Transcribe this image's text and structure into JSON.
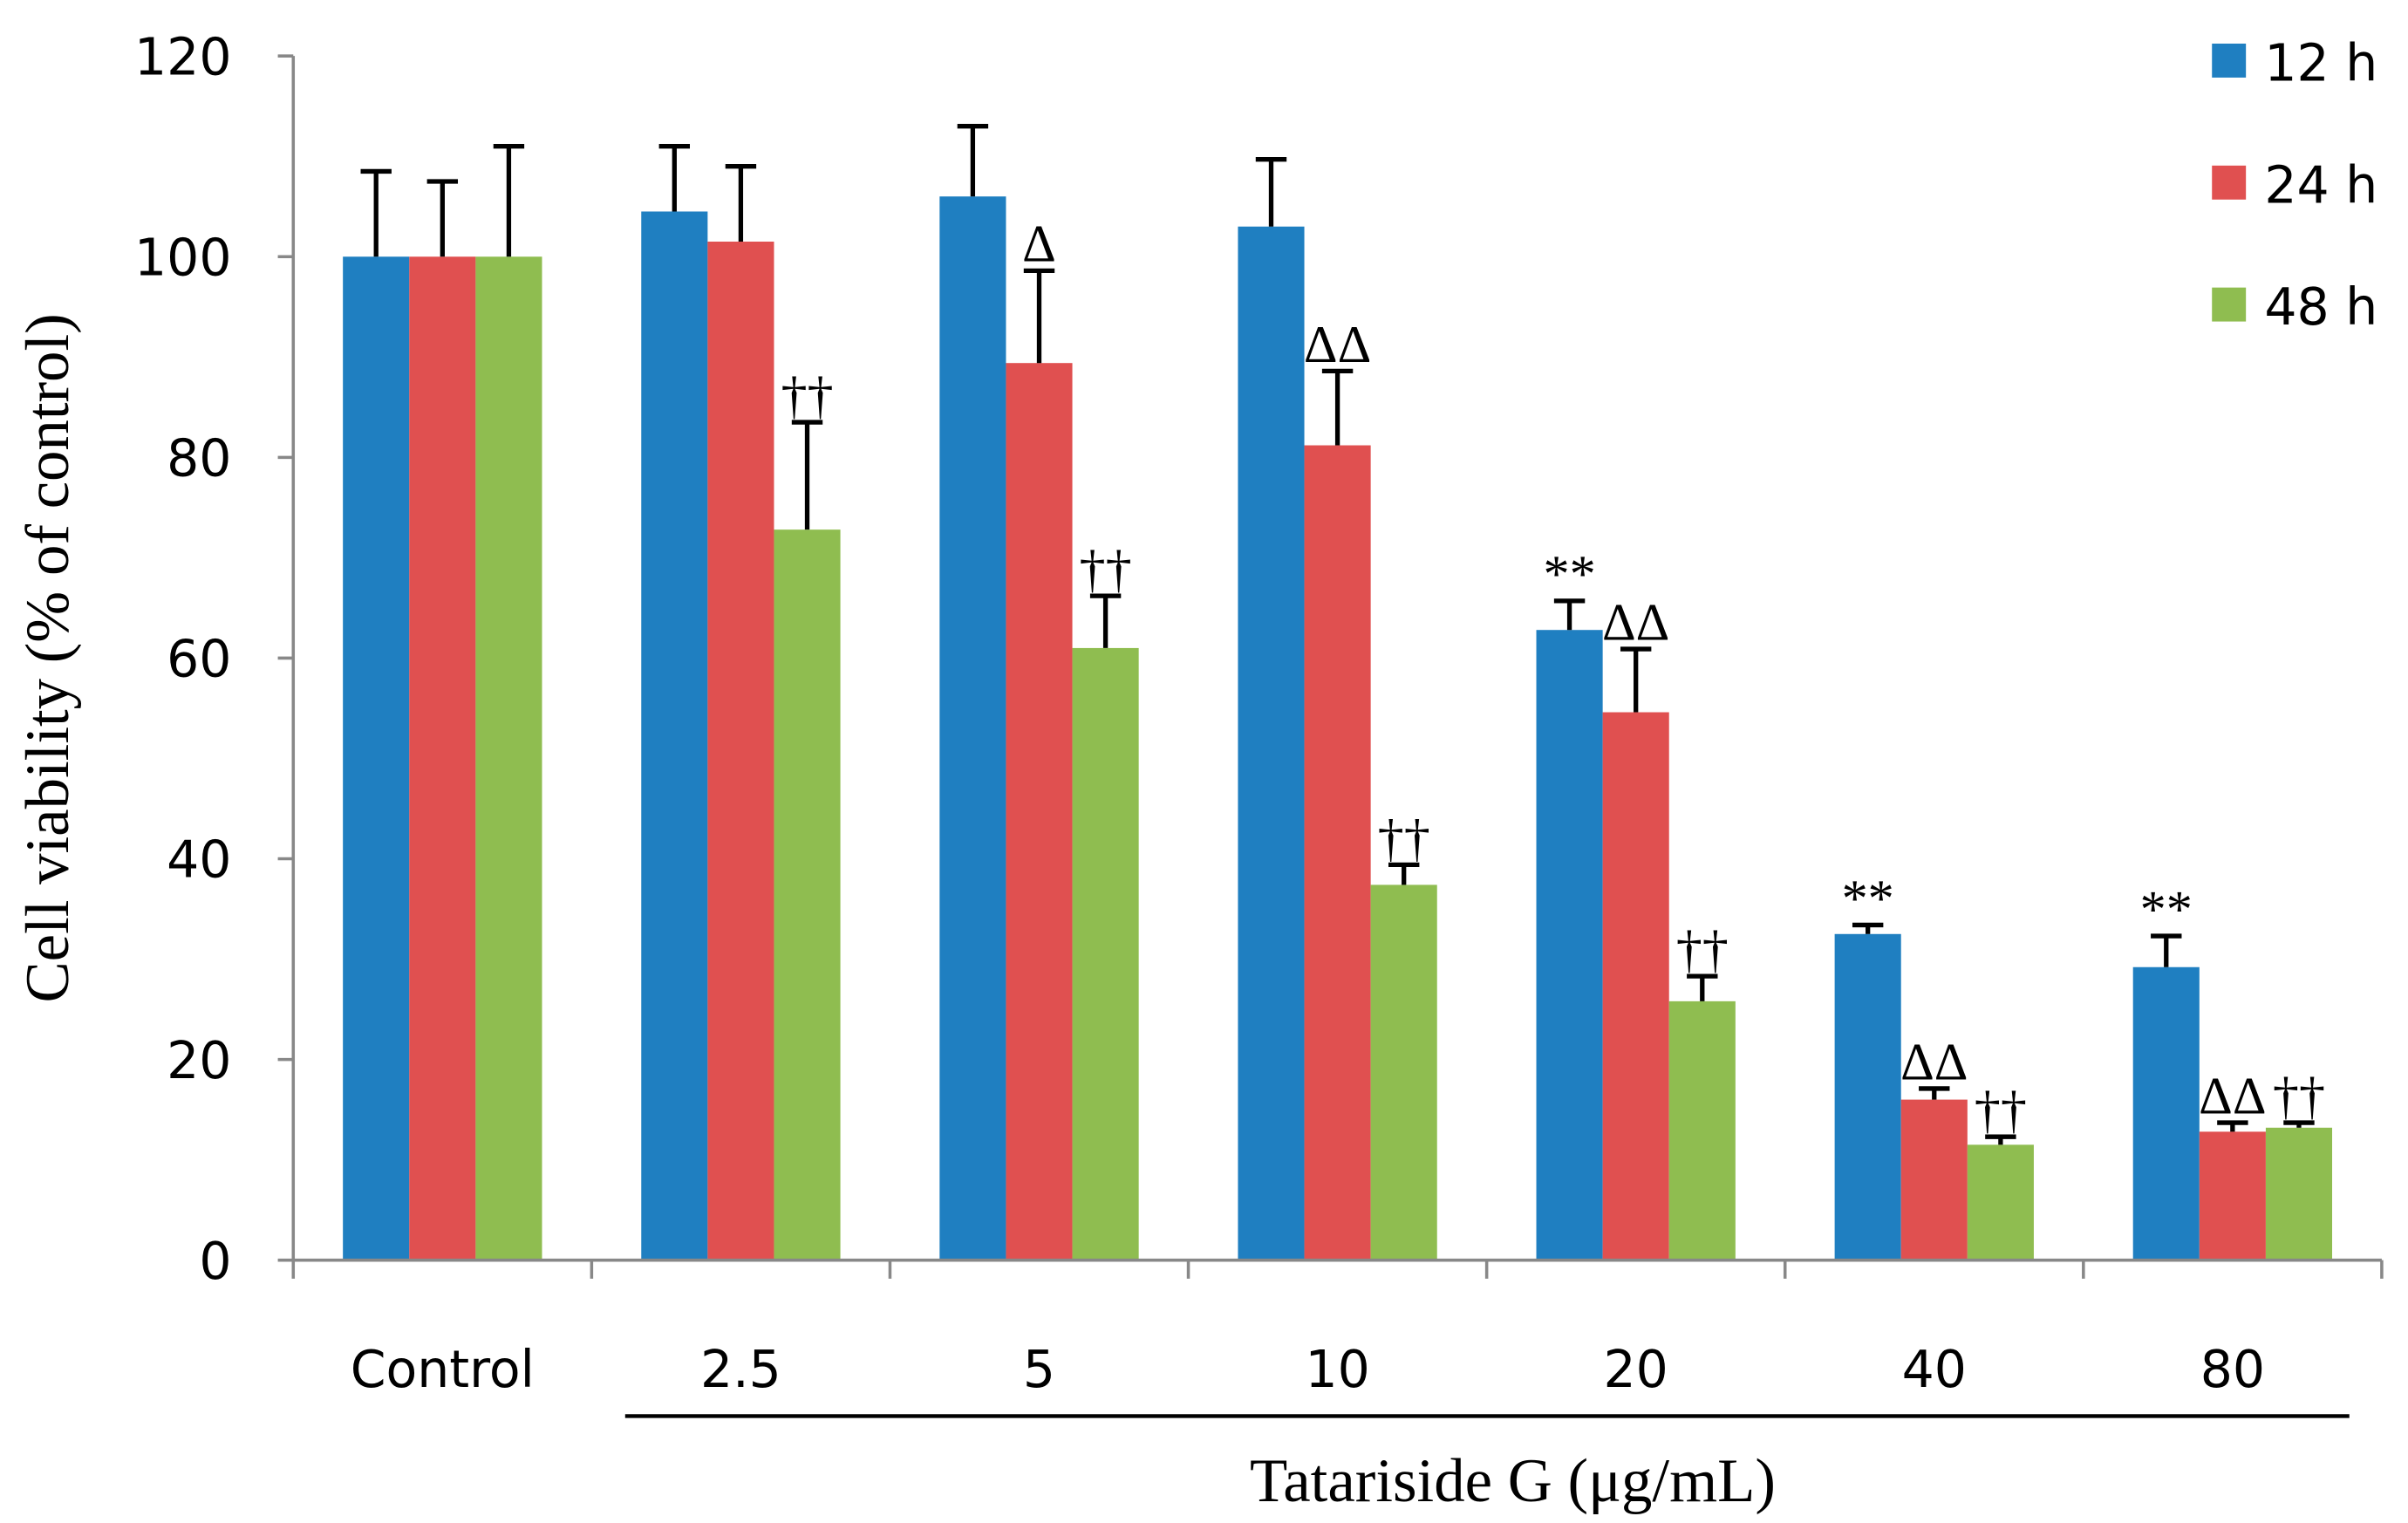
{
  "chart_data": {
    "type": "bar",
    "title": "",
    "xlabel": "Tatariside G (μg/mL)",
    "ylabel": "Cell viability (% of control)",
    "ylim": [
      0,
      120
    ],
    "yticks": [
      "0",
      "20",
      "40",
      "60",
      "80",
      "100",
      "120"
    ],
    "categories": [
      "Control",
      "2.5",
      "5",
      "10",
      "20",
      "40",
      "80"
    ],
    "legend_position": "top-right",
    "series": [
      {
        "name": "12 h",
        "color": "#1f7fc1",
        "values": [
          100,
          104.5,
          106,
          103,
          62.8,
          32.5,
          29.2
        ],
        "errors": [
          8.5,
          6.5,
          7,
          6.7,
          2.9,
          0.9,
          3.1
        ]
      },
      {
        "name": "24 h",
        "color": "#e05050",
        "values": [
          100,
          101.5,
          89.4,
          81.2,
          54.6,
          16,
          12.8
        ],
        "errors": [
          7.5,
          7.5,
          9.2,
          7.4,
          6.3,
          1.1,
          0.9
        ]
      },
      {
        "name": "48 h",
        "color": "#8fbd50",
        "values": [
          100,
          72.8,
          61,
          37.4,
          25.8,
          11.5,
          13.2
        ],
        "errors": [
          11,
          10.7,
          5.2,
          2,
          2.5,
          0.8,
          0.5
        ]
      }
    ],
    "annotations": [
      {
        "group": 1,
        "series": 2,
        "text": "††"
      },
      {
        "group": 2,
        "series": 1,
        "text": "Δ"
      },
      {
        "group": 2,
        "series": 2,
        "text": "††"
      },
      {
        "group": 3,
        "series": 1,
        "text": "ΔΔ"
      },
      {
        "group": 3,
        "series": 2,
        "text": "††"
      },
      {
        "group": 4,
        "series": 0,
        "text": "**"
      },
      {
        "group": 4,
        "series": 1,
        "text": "ΔΔ"
      },
      {
        "group": 4,
        "series": 2,
        "text": "††"
      },
      {
        "group": 5,
        "series": 0,
        "text": "**"
      },
      {
        "group": 5,
        "series": 1,
        "text": "ΔΔ"
      },
      {
        "group": 5,
        "series": 2,
        "text": "††"
      },
      {
        "group": 6,
        "series": 0,
        "text": "**"
      },
      {
        "group": 6,
        "series": 1,
        "text": "ΔΔ"
      },
      {
        "group": 6,
        "series": 2,
        "text": "††"
      }
    ]
  }
}
